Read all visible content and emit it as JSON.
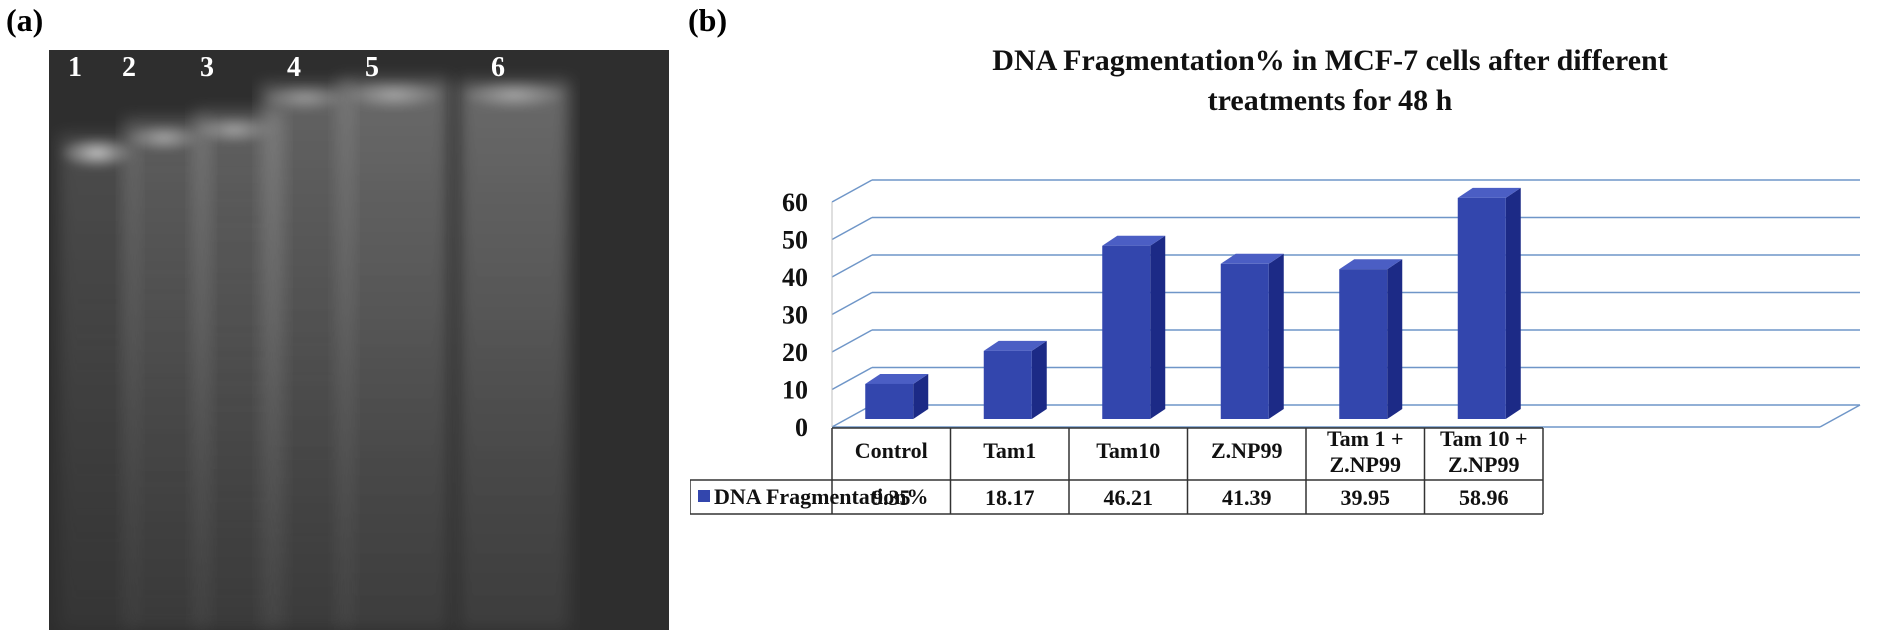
{
  "panel_a": {
    "label": "(a)",
    "lanes": [
      "1",
      "2",
      "3",
      "4",
      "5",
      "6"
    ]
  },
  "panel_b": {
    "label": "(b)"
  },
  "chart_data": {
    "type": "bar",
    "title_lines": [
      "DNA Fragmentation% in MCF-7 cells after different",
      "treatments for 48 h"
    ],
    "categories": [
      [
        "Control"
      ],
      [
        "Tam1"
      ],
      [
        "Tam10"
      ],
      [
        "Z.NP99"
      ],
      [
        "Tam 1 +",
        "Z.NP99"
      ],
      [
        "Tam 10 +",
        "Z.NP99"
      ]
    ],
    "series": [
      {
        "name": "DNA Fragmentation%",
        "values": [
          9.35,
          18.17,
          46.21,
          41.39,
          39.95,
          58.96
        ],
        "value_labels": [
          "9.35",
          "18.17",
          "46.21",
          "41.39",
          "39.95",
          "58.96"
        ]
      }
    ],
    "yticks": [
      "0",
      "10",
      "20",
      "30",
      "40",
      "50",
      "60"
    ],
    "ylim": [
      0,
      60
    ],
    "grid": true,
    "legend": "bottom-table",
    "colors": {
      "bar_front": "#3346ad",
      "bar_side": "#1c2a86",
      "bar_top": "#4b5ec4",
      "grid": "#6f96c8",
      "legend_swatch": "#3346ad"
    }
  }
}
